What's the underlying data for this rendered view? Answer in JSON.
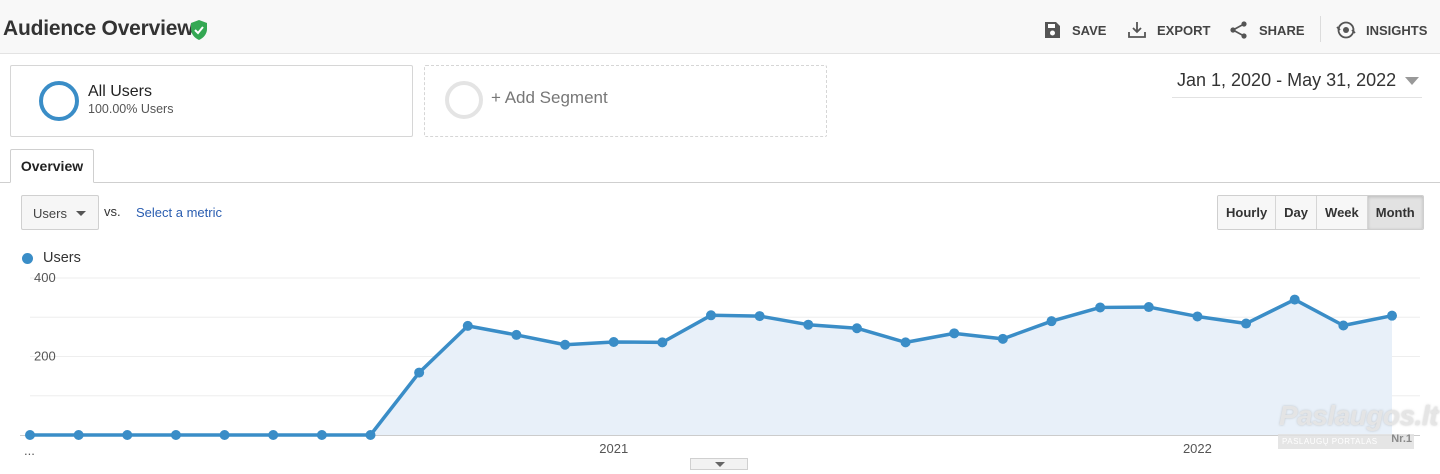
{
  "header": {
    "title": "Audience Overview",
    "actions": [
      {
        "label": "SAVE",
        "icon": "save-icon"
      },
      {
        "label": "EXPORT",
        "icon": "export-icon"
      },
      {
        "label": "SHARE",
        "icon": "share-icon"
      },
      {
        "label": "INSIGHTS",
        "icon": "insights-icon"
      }
    ]
  },
  "segments": {
    "active": {
      "name": "All Users",
      "sub": "100.00% Users"
    },
    "add_label": "+ Add Segment"
  },
  "date_range": "Jan 1, 2020 - May 31, 2022",
  "tabs": [
    {
      "label": "Overview"
    }
  ],
  "metric": {
    "selected": "Users",
    "vs": "vs.",
    "select_metric": "Select a metric"
  },
  "granularity": {
    "options": [
      "Hourly",
      "Day",
      "Week",
      "Month"
    ],
    "active": "Month"
  },
  "colors": {
    "series": "#3a8dc7",
    "area": "#e8f0f9",
    "verified": "#34a853",
    "link": "#2a5db0"
  },
  "chart_data": {
    "type": "line",
    "series": [
      {
        "name": "Users",
        "x": [
          "2020-01",
          "2020-02",
          "2020-03",
          "2020-04",
          "2020-05",
          "2020-06",
          "2020-07",
          "2020-08",
          "2020-09",
          "2020-10",
          "2020-11",
          "2020-12",
          "2021-01",
          "2021-02",
          "2021-03",
          "2021-04",
          "2021-05",
          "2021-06",
          "2021-07",
          "2021-08",
          "2021-09",
          "2021-10",
          "2021-11",
          "2021-12",
          "2022-01",
          "2022-02",
          "2022-03",
          "2022-04",
          "2022-05"
        ],
        "values": [
          0,
          0,
          0,
          0,
          0,
          0,
          0,
          0,
          159,
          278,
          255,
          230,
          237,
          236,
          305,
          303,
          281,
          272,
          236,
          259,
          245,
          290,
          325,
          326,
          302,
          284,
          345,
          279,
          304
        ]
      }
    ],
    "ylim": [
      0,
      400
    ],
    "yticks": [
      200,
      400
    ],
    "xticks": [
      "2021",
      "2022"
    ],
    "x_start_label": "...",
    "grid": true,
    "legend": "top-left",
    "fill_area": true
  },
  "watermark": {
    "main": "Paslaugos.lt",
    "sub": "PASLAUGŲ PORTALAS",
    "nr": "Nr.1"
  }
}
